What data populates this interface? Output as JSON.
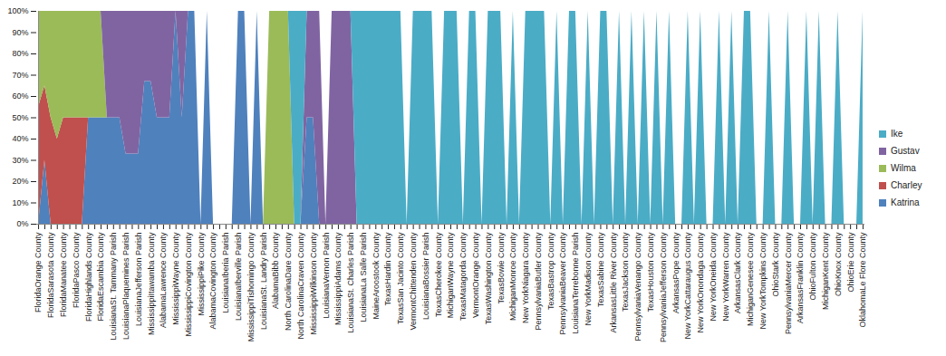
{
  "chart_data": {
    "type": "area",
    "stacked": true,
    "legend": "right",
    "grid": false,
    "ylim": [
      0,
      100
    ],
    "yticks": [
      {
        "value": 0,
        "label": "0%"
      },
      {
        "value": 10,
        "label": "10%"
      },
      {
        "value": 20,
        "label": "20%"
      },
      {
        "value": 30,
        "label": "30%"
      },
      {
        "value": 40,
        "label": "40%"
      },
      {
        "value": 50,
        "label": "50%"
      },
      {
        "value": 60,
        "label": "60%"
      },
      {
        "value": 70,
        "label": "70%"
      },
      {
        "value": 80,
        "label": "80%"
      },
      {
        "value": 90,
        "label": "90%"
      },
      {
        "value": 100,
        "label": "100%"
      }
    ],
    "categories": [
      "FloridaOrange County",
      null,
      "FloridaSarasota County",
      null,
      "FloridaManatee County",
      null,
      "FloridaPasco County",
      null,
      "FloridaHighlands County",
      null,
      "FloridaEscambia County",
      null,
      "LouisianaSt. Tammany Parish",
      null,
      "LouisianaPlaquemines Parish",
      null,
      "LouisianaJefferson Parish",
      null,
      "MississippiItawamba County",
      null,
      "AlabamaLawrence County",
      null,
      "MississippiWayne County",
      null,
      "MississippiCovington County",
      null,
      "MississippiPike County",
      null,
      "AlabamaCovington County",
      null,
      "LouisianaIberia Parish",
      null,
      "LouisianaIberville Parish",
      null,
      "MississippiTishomingo County",
      null,
      "LouisianaSt. Landry Parish",
      null,
      "AlabamaBibb County",
      null,
      "North CarolinaDare County",
      null,
      "North CarolinaCraven County",
      null,
      "MississippiWilkinson County",
      null,
      "LouisianaVernon Parish",
      null,
      "MississippiAdams County",
      null,
      "LouisianaSt. Charles Parish",
      null,
      "LouisianaLa Salle Parish",
      null,
      "MaineAroostook County",
      null,
      "TexasHardin County",
      null,
      "TexasSan Jacinto County",
      null,
      "VermontChittenden County",
      null,
      "LouisianaBossier Parish",
      null,
      "TexasCherokee County",
      null,
      "MichiganWayne County",
      null,
      "TexasMatagorda County",
      null,
      "VermontOrange County",
      null,
      "TexasWashington County",
      null,
      "TexasBowie County",
      null,
      "MichiganMonroe County",
      null,
      "New YorkNiagara County",
      null,
      "PennsylvaniaButler County",
      null,
      "TexasBastrop County",
      null,
      "PennsylvaniaBeaver County",
      null,
      "LouisianaTerrebonne Parish",
      null,
      "New YorkMadison County",
      null,
      "TexasSabine County",
      null,
      "ArkansasLittle River County",
      null,
      "TexasJackson County",
      null,
      "PennsylvaniaVenango County",
      null,
      "TexasHouston County",
      null,
      "PennsylvaniaJefferson County",
      null,
      "ArkansasPope County",
      null,
      "New YorkCattaraugus County",
      null,
      "New YorkOnondaga County",
      null,
      "New YorkOneida County",
      null,
      "New YorkWarren County",
      null,
      "ArkansasClark County",
      null,
      "MichiganGenesee County",
      null,
      "New YorkTompkins County",
      null,
      "OhioStark County",
      null,
      "PennsylvaniaMercer County",
      null,
      "ArkansasFranklin County",
      null,
      "OhioFulton County",
      null,
      "MichiganKent County",
      null,
      "OhioKnox County",
      null,
      "OhioErie County",
      null,
      "OklahomaLe Flore County"
    ],
    "series": [
      {
        "name": "Katrina",
        "color": "#4f81bd",
        "values": [
          0,
          30,
          0,
          0,
          0,
          0,
          0,
          0,
          50,
          50,
          50,
          50,
          50,
          50,
          33,
          33,
          33,
          67,
          67,
          50,
          50,
          50,
          100,
          50,
          100,
          100,
          0,
          100,
          0,
          0,
          0,
          0,
          100,
          100,
          0,
          100,
          0,
          0,
          0,
          0,
          0,
          0,
          0,
          50,
          50,
          0,
          0,
          0,
          0,
          0,
          0,
          0,
          0,
          0,
          0,
          0,
          0,
          0,
          0,
          0,
          0,
          0,
          0,
          0,
          0,
          0,
          0,
          0,
          0,
          0,
          0,
          0,
          0,
          0,
          0,
          0,
          0,
          0,
          0,
          0,
          0,
          0,
          0,
          0,
          0,
          0,
          0,
          0,
          0,
          0,
          0,
          0,
          0,
          0,
          0,
          0,
          0,
          0,
          0,
          0,
          0,
          0,
          0,
          0,
          0,
          0,
          0,
          0,
          0,
          0,
          0,
          0,
          0,
          0,
          0,
          0,
          0,
          0,
          0,
          0,
          0,
          0,
          0,
          0,
          0,
          0,
          0,
          0,
          0,
          0,
          0,
          0,
          0
        ]
      },
      {
        "name": "Charley",
        "color": "#c0504d",
        "values": [
          55,
          35,
          50,
          40,
          50,
          50,
          50,
          50,
          0,
          0,
          0,
          0,
          0,
          0,
          0,
          0,
          0,
          0,
          0,
          0,
          0,
          0,
          0,
          0,
          0,
          0,
          0,
          0,
          0,
          0,
          0,
          0,
          0,
          0,
          0,
          0,
          0,
          0,
          0,
          0,
          0,
          0,
          0,
          0,
          0,
          0,
          0,
          0,
          0,
          0,
          0,
          0,
          0,
          0,
          0,
          0,
          0,
          0,
          0,
          0,
          0,
          0,
          0,
          0,
          0,
          0,
          0,
          0,
          0,
          0,
          0,
          0,
          0,
          0,
          0,
          0,
          0,
          0,
          0,
          0,
          0,
          0,
          0,
          0,
          0,
          0,
          0,
          0,
          0,
          0,
          0,
          0,
          0,
          0,
          0,
          0,
          0,
          0,
          0,
          0,
          0,
          0,
          0,
          0,
          0,
          0,
          0,
          0,
          0,
          0,
          0,
          0,
          0,
          0,
          0,
          0,
          0,
          0,
          0,
          0,
          0,
          0,
          0,
          0,
          0,
          0,
          0,
          0,
          0,
          0,
          0,
          0,
          0
        ]
      },
      {
        "name": "Wilma",
        "color": "#9bbb59",
        "values": [
          45,
          35,
          50,
          60,
          50,
          50,
          50,
          50,
          50,
          50,
          50,
          0,
          0,
          0,
          0,
          0,
          0,
          0,
          0,
          0,
          0,
          0,
          0,
          0,
          0,
          0,
          0,
          0,
          0,
          0,
          0,
          0,
          0,
          0,
          0,
          0,
          0,
          100,
          100,
          100,
          100,
          0,
          0,
          0,
          0,
          0,
          0,
          0,
          0,
          0,
          0,
          0,
          0,
          0,
          0,
          0,
          0,
          0,
          0,
          0,
          0,
          0,
          0,
          0,
          0,
          0,
          0,
          0,
          0,
          0,
          0,
          0,
          0,
          0,
          0,
          0,
          0,
          0,
          0,
          0,
          0,
          0,
          0,
          0,
          0,
          0,
          0,
          0,
          0,
          0,
          0,
          0,
          0,
          0,
          0,
          0,
          0,
          0,
          0,
          0,
          0,
          0,
          0,
          0,
          0,
          0,
          0,
          0,
          0,
          0,
          0,
          0,
          0,
          0,
          0,
          0,
          0,
          0,
          0,
          0,
          0,
          0,
          0,
          0,
          0,
          0,
          0,
          0,
          0,
          0,
          0,
          0,
          0
        ]
      },
      {
        "name": "Gustav",
        "color": "#8064a2",
        "values": [
          0,
          0,
          0,
          0,
          0,
          0,
          0,
          0,
          0,
          0,
          0,
          50,
          50,
          50,
          67,
          67,
          67,
          33,
          33,
          50,
          50,
          50,
          0,
          50,
          0,
          0,
          0,
          0,
          0,
          0,
          0,
          0,
          0,
          0,
          0,
          0,
          0,
          0,
          0,
          0,
          0,
          0,
          0,
          50,
          50,
          100,
          0,
          100,
          100,
          100,
          100,
          0,
          0,
          0,
          0,
          0,
          0,
          0,
          0,
          0,
          0,
          0,
          0,
          0,
          0,
          0,
          0,
          0,
          0,
          0,
          0,
          0,
          0,
          0,
          0,
          0,
          0,
          0,
          0,
          0,
          0,
          0,
          0,
          0,
          0,
          0,
          0,
          0,
          0,
          0,
          0,
          0,
          0,
          0,
          0,
          0,
          0,
          0,
          0,
          0,
          0,
          0,
          0,
          0,
          0,
          0,
          0,
          0,
          0,
          0,
          0,
          0,
          0,
          0,
          0,
          0,
          0,
          0,
          0,
          0,
          0,
          0,
          0,
          0,
          0,
          0,
          0,
          0,
          0,
          0,
          0,
          0,
          0
        ]
      },
      {
        "name": "Ike",
        "color": "#4bacc6",
        "values": [
          0,
          0,
          0,
          0,
          0,
          0,
          0,
          0,
          0,
          0,
          0,
          0,
          0,
          0,
          0,
          0,
          0,
          0,
          0,
          0,
          0,
          0,
          0,
          0,
          0,
          0,
          0,
          0,
          0,
          0,
          0,
          0,
          0,
          0,
          0,
          0,
          0,
          0,
          0,
          0,
          0,
          100,
          100,
          0,
          0,
          0,
          0,
          0,
          0,
          0,
          0,
          100,
          100,
          100,
          100,
          100,
          100,
          100,
          100,
          0,
          100,
          100,
          100,
          100,
          0,
          100,
          100,
          100,
          0,
          100,
          100,
          0,
          100,
          100,
          100,
          0,
          100,
          0,
          100,
          100,
          100,
          100,
          0,
          100,
          0,
          100,
          100,
          0,
          100,
          0,
          100,
          100,
          0,
          100,
          0,
          100,
          0,
          100,
          0,
          100,
          0,
          100,
          0,
          0,
          100,
          0,
          100,
          0,
          0,
          100,
          0,
          100,
          0,
          100,
          100,
          0,
          0,
          100,
          0,
          0,
          100,
          0,
          0,
          100,
          0,
          100,
          0,
          0,
          100,
          0,
          0,
          0,
          100
        ]
      }
    ]
  }
}
